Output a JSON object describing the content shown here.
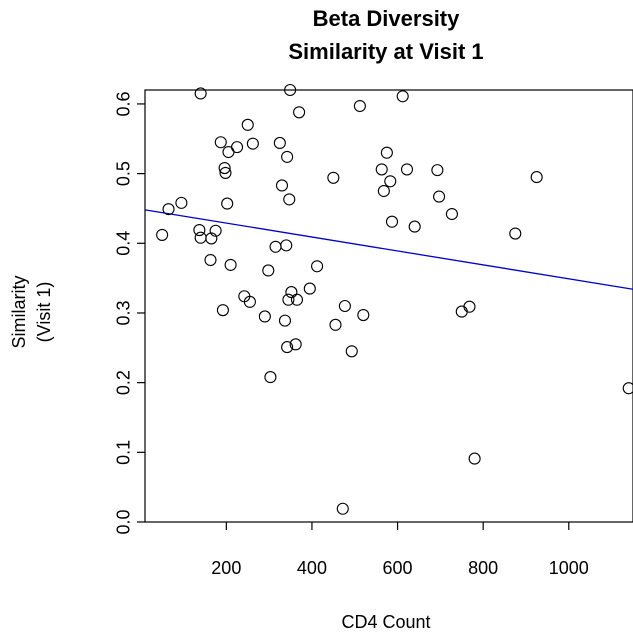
{
  "chart_data": {
    "type": "scatter",
    "title": "Beta Diversity",
    "subtitle": "Similarity at Visit 1",
    "xlabel": "CD4 Count",
    "ylabel": [
      "Similarity",
      "(Visit 1)"
    ],
    "xlim": [
      10,
      1150
    ],
    "ylim": [
      0.0,
      0.62
    ],
    "xticks": [
      200,
      400,
      600,
      800,
      1000
    ],
    "yticks": [
      0.0,
      0.1,
      0.2,
      0.3,
      0.4,
      0.5,
      0.6
    ],
    "ytick_labels": [
      "0.0",
      "0.1",
      "0.2",
      "0.3",
      "0.4",
      "0.5",
      "0.6"
    ],
    "grid": false,
    "regression_line": {
      "color": "#0000cc",
      "x": [
        10,
        1150
      ],
      "y": [
        0.448,
        0.334
      ]
    },
    "points": [
      {
        "x": 50,
        "y": 0.412
      },
      {
        "x": 65,
        "y": 0.449
      },
      {
        "x": 95,
        "y": 0.458
      },
      {
        "x": 137,
        "y": 0.419
      },
      {
        "x": 140,
        "y": 0.408
      },
      {
        "x": 140,
        "y": 0.615
      },
      {
        "x": 163,
        "y": 0.376
      },
      {
        "x": 165,
        "y": 0.407
      },
      {
        "x": 175,
        "y": 0.418
      },
      {
        "x": 187,
        "y": 0.545
      },
      {
        "x": 192,
        "y": 0.304
      },
      {
        "x": 196,
        "y": 0.508
      },
      {
        "x": 198,
        "y": 0.501
      },
      {
        "x": 202,
        "y": 0.457
      },
      {
        "x": 205,
        "y": 0.531
      },
      {
        "x": 210,
        "y": 0.369
      },
      {
        "x": 225,
        "y": 0.538
      },
      {
        "x": 242,
        "y": 0.324
      },
      {
        "x": 250,
        "y": 0.57
      },
      {
        "x": 255,
        "y": 0.316
      },
      {
        "x": 262,
        "y": 0.543
      },
      {
        "x": 290,
        "y": 0.295
      },
      {
        "x": 298,
        "y": 0.361
      },
      {
        "x": 303,
        "y": 0.208
      },
      {
        "x": 315,
        "y": 0.395
      },
      {
        "x": 325,
        "y": 0.544
      },
      {
        "x": 330,
        "y": 0.483
      },
      {
        "x": 337,
        "y": 0.289
      },
      {
        "x": 340,
        "y": 0.397
      },
      {
        "x": 342,
        "y": 0.251
      },
      {
        "x": 342,
        "y": 0.524
      },
      {
        "x": 345,
        "y": 0.319
      },
      {
        "x": 347,
        "y": 0.463
      },
      {
        "x": 349,
        "y": 0.62
      },
      {
        "x": 352,
        "y": 0.33
      },
      {
        "x": 362,
        "y": 0.255
      },
      {
        "x": 365,
        "y": 0.319
      },
      {
        "x": 370,
        "y": 0.588
      },
      {
        "x": 395,
        "y": 0.335
      },
      {
        "x": 412,
        "y": 0.367
      },
      {
        "x": 450,
        "y": 0.494
      },
      {
        "x": 455,
        "y": 0.283
      },
      {
        "x": 472,
        "y": 0.019
      },
      {
        "x": 477,
        "y": 0.31
      },
      {
        "x": 493,
        "y": 0.245
      },
      {
        "x": 512,
        "y": 0.597
      },
      {
        "x": 520,
        "y": 0.297
      },
      {
        "x": 563,
        "y": 0.506
      },
      {
        "x": 568,
        "y": 0.475
      },
      {
        "x": 575,
        "y": 0.53
      },
      {
        "x": 583,
        "y": 0.489
      },
      {
        "x": 587,
        "y": 0.431
      },
      {
        "x": 612,
        "y": 0.611
      },
      {
        "x": 622,
        "y": 0.506
      },
      {
        "x": 640,
        "y": 0.424
      },
      {
        "x": 693,
        "y": 0.505
      },
      {
        "x": 697,
        "y": 0.467
      },
      {
        "x": 727,
        "y": 0.442
      },
      {
        "x": 750,
        "y": 0.302
      },
      {
        "x": 768,
        "y": 0.309
      },
      {
        "x": 780,
        "y": 0.091
      },
      {
        "x": 875,
        "y": 0.414
      },
      {
        "x": 925,
        "y": 0.495
      },
      {
        "x": 1140,
        "y": 0.192
      }
    ]
  }
}
